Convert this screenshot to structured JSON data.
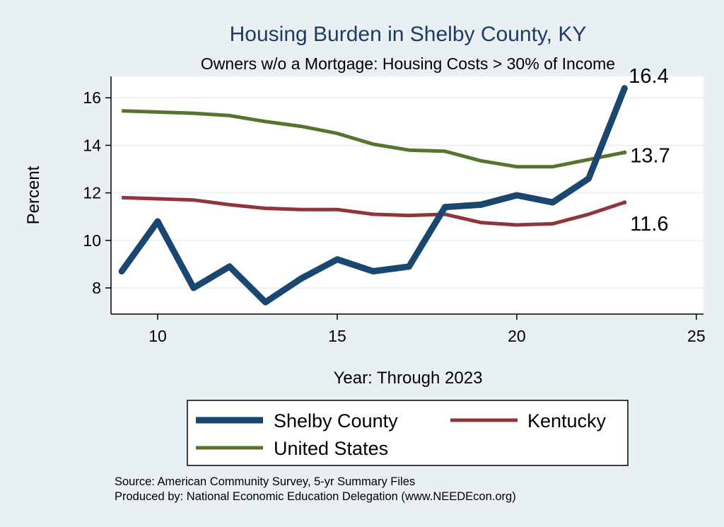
{
  "chart_data": {
    "type": "line",
    "title": "Housing Burden in Shelby County, KY",
    "subtitle": "Owners w/o a Mortgage: Housing Costs > 30% of Income",
    "xlabel": "Year: Through 2023",
    "ylabel": "Percent",
    "xlim": [
      8.7,
      25.2
    ],
    "ylim": [
      6.9,
      16.9
    ],
    "xticks": [
      10,
      15,
      20,
      25
    ],
    "yticks": [
      8,
      10,
      12,
      14,
      16
    ],
    "grid": true,
    "legend_position": "bottom",
    "x": [
      9,
      10,
      11,
      12,
      13,
      14,
      15,
      16,
      17,
      18,
      19,
      20,
      21,
      22,
      23
    ],
    "series": [
      {
        "name": "Shelby County",
        "color": "#1a476f",
        "values": [
          8.7,
          10.8,
          8.0,
          8.9,
          7.4,
          8.4,
          9.2,
          8.7,
          8.9,
          11.4,
          11.5,
          11.9,
          11.6,
          12.6,
          16.4
        ],
        "end_label": "16.4"
      },
      {
        "name": "Kentucky",
        "color": "#90353b",
        "values": [
          11.8,
          11.75,
          11.7,
          11.5,
          11.35,
          11.3,
          11.3,
          11.1,
          11.05,
          11.1,
          10.75,
          10.65,
          10.7,
          11.1,
          11.6
        ],
        "end_label": "11.6"
      },
      {
        "name": "United States",
        "color": "#55752f",
        "values": [
          15.45,
          15.4,
          15.35,
          15.25,
          15.0,
          14.8,
          14.5,
          14.05,
          13.8,
          13.75,
          13.35,
          13.1,
          13.1,
          13.4,
          13.7
        ],
        "end_label": "13.7"
      }
    ]
  },
  "notes": {
    "source": "Source: American Community Survey, 5-yr Summary Files",
    "produced_by": "Produced by: National Economic Education Delegation (www.NEEDEcon.org)"
  }
}
